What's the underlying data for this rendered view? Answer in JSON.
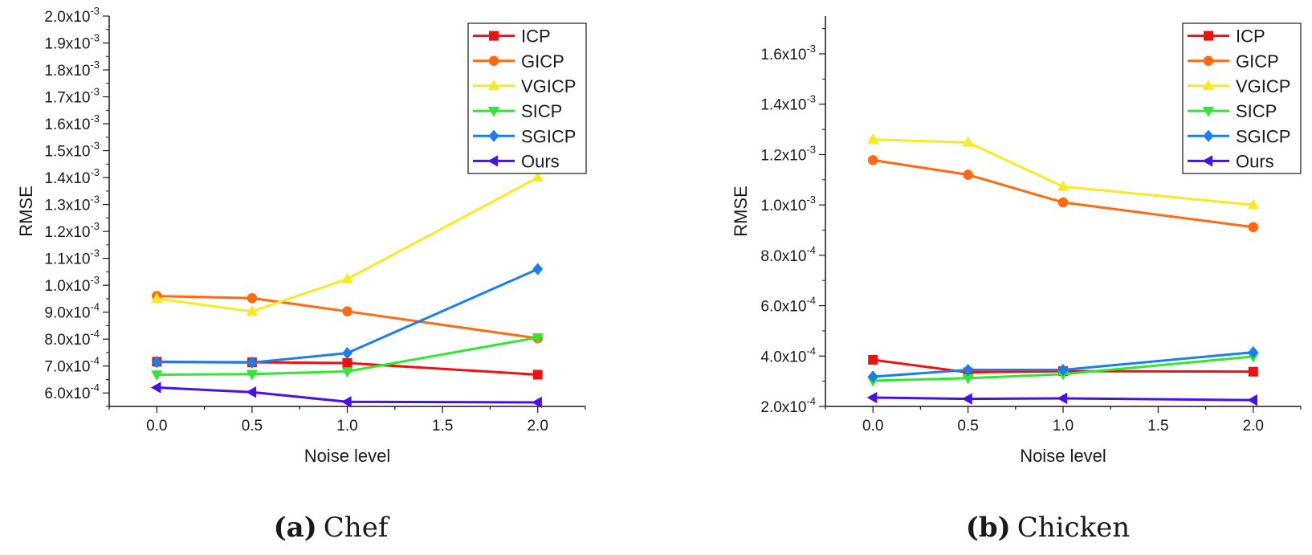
{
  "chart_data": [
    {
      "type": "line",
      "title": "",
      "xlabel": "Noise level",
      "ylabel": "RMSE",
      "xlim": [
        -0.25,
        2.25
      ],
      "ylim": [
        0.00055,
        0.002
      ],
      "x_ticks": [
        0.0,
        0.5,
        1.0,
        1.5,
        2.0
      ],
      "x_tick_labels": [
        "0.0",
        "0.5",
        "1.0",
        "1.5",
        "2.0"
      ],
      "y_ticks": [
        0.0006,
        0.0007,
        0.0008,
        0.0009,
        0.001,
        0.0011,
        0.0012,
        0.0013,
        0.0014,
        0.0015,
        0.0016,
        0.0017,
        0.0018,
        0.0019,
        0.002
      ],
      "y_tick_labels": [
        {
          "mant": "6.0x10",
          "exp": "-4"
        },
        {
          "mant": "7.0x10",
          "exp": "-4"
        },
        {
          "mant": "8.0x10",
          "exp": "-4"
        },
        {
          "mant": "9.0x10",
          "exp": "-4"
        },
        {
          "mant": "1.0x10",
          "exp": "-3"
        },
        {
          "mant": "1.1x10",
          "exp": "-3"
        },
        {
          "mant": "1.2x10",
          "exp": "-3"
        },
        {
          "mant": "1.3x10",
          "exp": "-3"
        },
        {
          "mant": "1.4x10",
          "exp": "-3"
        },
        {
          "mant": "1.5x10",
          "exp": "-3"
        },
        {
          "mant": "1.6x10",
          "exp": "-3"
        },
        {
          "mant": "1.7x10",
          "exp": "-3"
        },
        {
          "mant": "1.8x10",
          "exp": "-3"
        },
        {
          "mant": "1.9x10",
          "exp": "-3"
        },
        {
          "mant": "2.0x10",
          "exp": "-3"
        }
      ],
      "y_minor_step": 5e-05,
      "legend_position": "top-right",
      "caption": {
        "label": "(a)",
        "name": "Chef"
      },
      "x": [
        0.0,
        0.5,
        1.0,
        2.0
      ],
      "series": [
        {
          "name": "ICP",
          "color": "#ee1111",
          "marker": "square",
          "values": [
            0.000716,
            0.000714,
            0.000711,
            0.000668
          ]
        },
        {
          "name": "GICP",
          "color": "#ff6a10",
          "marker": "circle",
          "values": [
            0.00096,
            0.000952,
            0.000903,
            0.000803
          ]
        },
        {
          "name": "VGICP",
          "color": "#f8ea20",
          "marker": "triangle-up",
          "values": [
            0.00095,
            0.000903,
            0.001023,
            0.0014
          ]
        },
        {
          "name": "SICP",
          "color": "#30e830",
          "marker": "triangle-down",
          "values": [
            0.000668,
            0.00067,
            0.00068,
            0.000806
          ]
        },
        {
          "name": "SGICP",
          "color": "#1a7fe8",
          "marker": "diamond",
          "values": [
            0.000715,
            0.000713,
            0.000748,
            0.00106
          ]
        },
        {
          "name": "Ours",
          "color": "#4a10e8",
          "marker": "triangle-left",
          "values": [
            0.00062,
            0.000603,
            0.000567,
            0.000565
          ]
        }
      ]
    },
    {
      "type": "line",
      "title": "",
      "xlabel": "Noise level",
      "ylabel": "RMSE",
      "xlim": [
        -0.25,
        2.25
      ],
      "ylim": [
        0.0002,
        0.00175
      ],
      "x_ticks": [
        0.0,
        0.5,
        1.0,
        1.5,
        2.0
      ],
      "x_tick_labels": [
        "0.0",
        "0.5",
        "1.0",
        "1.5",
        "2.0"
      ],
      "y_ticks": [
        0.0002,
        0.0004,
        0.0006,
        0.0008,
        0.001,
        0.0012,
        0.0014,
        0.0016
      ],
      "y_tick_labels": [
        {
          "mant": "2.0x10",
          "exp": "-4"
        },
        {
          "mant": "4.0x10",
          "exp": "-4"
        },
        {
          "mant": "6.0x10",
          "exp": "-4"
        },
        {
          "mant": "8.0x10",
          "exp": "-4"
        },
        {
          "mant": "1.0x10",
          "exp": "-3"
        },
        {
          "mant": "1.2x10",
          "exp": "-3"
        },
        {
          "mant": "1.4x10",
          "exp": "-3"
        },
        {
          "mant": "1.6x10",
          "exp": "-3"
        }
      ],
      "y_minor_step": 0.0001,
      "legend_position": "top-right",
      "caption": {
        "label": "(b)",
        "name": "Chicken"
      },
      "x": [
        0.0,
        0.5,
        1.0,
        2.0
      ],
      "series": [
        {
          "name": "ICP",
          "color": "#ee1111",
          "marker": "square",
          "values": [
            0.000385,
            0.000335,
            0.00034,
            0.000338
          ]
        },
        {
          "name": "GICP",
          "color": "#ff6a10",
          "marker": "circle",
          "values": [
            0.001178,
            0.00112,
            0.00101,
            0.000912
          ]
        },
        {
          "name": "VGICP",
          "color": "#f8ea20",
          "marker": "triangle-up",
          "values": [
            0.00126,
            0.001248,
            0.001073,
            0.001
          ]
        },
        {
          "name": "SICP",
          "color": "#30e830",
          "marker": "triangle-down",
          "values": [
            0.000302,
            0.000312,
            0.000328,
            0.000398
          ]
        },
        {
          "name": "SGICP",
          "color": "#1a7fe8",
          "marker": "diamond",
          "values": [
            0.000318,
            0.000345,
            0.000345,
            0.000415
          ]
        },
        {
          "name": "Ours",
          "color": "#4a10e8",
          "marker": "triangle-left",
          "values": [
            0.000235,
            0.00023,
            0.000232,
            0.000225
          ]
        }
      ]
    }
  ]
}
